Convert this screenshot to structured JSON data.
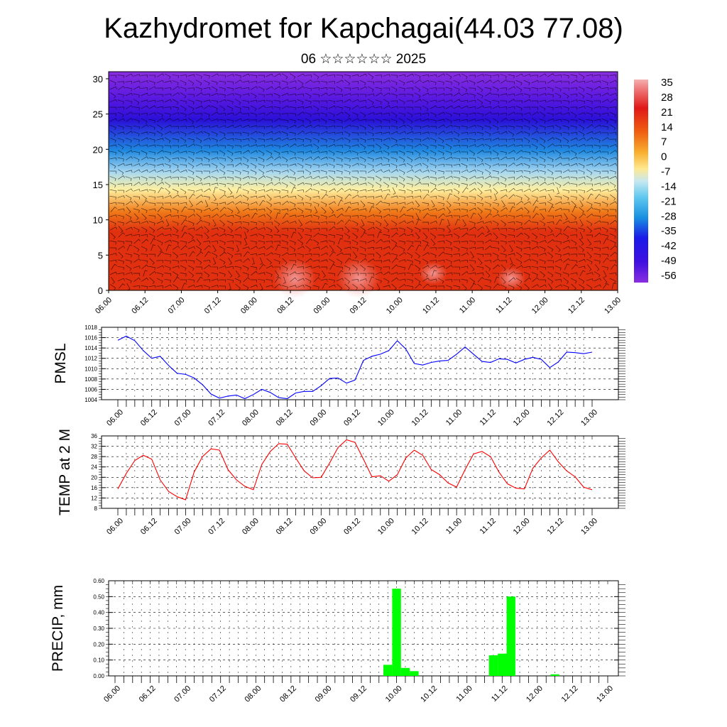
{
  "header": {
    "title": "Kazhydromet for Kapchagai(44.03 77.08)",
    "subtitle": "06 ☆☆☆☆☆☆ 2025"
  },
  "chart_data": [
    {
      "type": "heatmap",
      "title": "",
      "ylabel": "",
      "x_tick_labels": [
        "06.00",
        "06.12",
        "07.00",
        "07.12",
        "08.00",
        "08.12",
        "09.00",
        "09.12",
        "10.00",
        "10.12",
        "11.00",
        "11.12",
        "12.00",
        "12.12",
        "13.00"
      ],
      "y_ticks": [
        0,
        5,
        10,
        15,
        20,
        25,
        30
      ],
      "ylim": [
        0,
        31
      ],
      "colorbar_labels": [
        35,
        28,
        21,
        14,
        7,
        0,
        -7,
        -14,
        -21,
        -28,
        -35,
        -42,
        -49,
        -56
      ],
      "overlay": "wind barbs",
      "colors": {
        "hot": "#e03010",
        "warm": "#f07a18",
        "neutral": "#fff0a0",
        "cold": "#1e88e0",
        "deep": "#2a10d8",
        "top": "#8a2ee0"
      }
    },
    {
      "type": "line",
      "ylabel": "PMSL",
      "color": "#0000ff",
      "ylim": [
        1004,
        1018
      ],
      "y_ticks": [
        1004,
        1006,
        1008,
        1010,
        1012,
        1014,
        1016,
        1018
      ],
      "x_tick_labels": [
        "06.00",
        "06.12",
        "07.00",
        "07.12",
        "08.00",
        "08.12",
        "09.00",
        "09.12",
        "10.00",
        "10.12",
        "11.00",
        "11.12",
        "12.00",
        "12.12",
        "13.00"
      ],
      "values": [
        1015.5,
        1016.3,
        1015.4,
        1013.5,
        1012.0,
        1012.4,
        1010.6,
        1009.1,
        1008.9,
        1008.2,
        1006.9,
        1005.1,
        1004.3,
        1004.7,
        1004.9,
        1004.2,
        1005.0,
        1006.0,
        1005.4,
        1004.4,
        1004.2,
        1005.3,
        1005.6,
        1005.6,
        1006.7,
        1008.1,
        1008.2,
        1007.2,
        1007.8,
        1011.6,
        1012.4,
        1012.8,
        1013.5,
        1015.4,
        1013.8,
        1011.0,
        1010.7,
        1011.2,
        1011.5,
        1011.6,
        1012.8,
        1014.2,
        1012.8,
        1011.4,
        1011.2,
        1011.9,
        1011.8,
        1011.1,
        1011.8,
        1012.2,
        1011.8,
        1010.2,
        1011.3,
        1013.2,
        1013.1,
        1012.9,
        1013.2
      ],
      "x_start_hour": 0,
      "x_step_hours": 3
    },
    {
      "type": "line",
      "ylabel": "TEMP at 2 M",
      "color": "#ff0000",
      "ylim": [
        8,
        36
      ],
      "y_ticks": [
        8,
        12,
        16,
        20,
        24,
        28,
        32,
        36
      ],
      "x_tick_labels": [
        "06.00",
        "06.12",
        "07.00",
        "07.12",
        "08.00",
        "08.12",
        "09.00",
        "09.12",
        "10.00",
        "10.12",
        "11.00",
        "11.12",
        "12.00",
        "12.12",
        "13.00"
      ],
      "values": [
        15.5,
        21.5,
        26.5,
        28.5,
        27.0,
        19.0,
        14.5,
        12.5,
        11.3,
        22.0,
        28.0,
        31.0,
        30.5,
        23.0,
        19.0,
        16.5,
        15.2,
        25.0,
        30.0,
        33.0,
        32.8,
        27.5,
        22.5,
        19.8,
        20.0,
        25.5,
        31.5,
        34.5,
        33.5,
        27.0,
        20.2,
        20.6,
        18.5,
        21.0,
        27.5,
        30.5,
        28.5,
        23.0,
        21.0,
        17.8,
        16.2,
        23.0,
        29.0,
        30.0,
        28.0,
        22.0,
        17.5,
        15.8,
        15.5,
        23.5,
        27.5,
        30.5,
        26.0,
        22.5,
        20.2,
        16.2,
        15.2
      ],
      "x_start_hour": 0,
      "x_step_hours": 3
    },
    {
      "type": "bar",
      "ylabel": "PRECIP, mm",
      "color": "#00ff00",
      "ylim": [
        0,
        0.6
      ],
      "y_tick_labels": [
        "0.00",
        "0.10",
        "0.20",
        "0.30",
        "0.40",
        "0.50",
        "0.60"
      ],
      "x_tick_labels": [
        "06.00",
        "06.12",
        "07.00",
        "07.12",
        "08.00",
        "08.12",
        "09.00",
        "09.12",
        "10.00",
        "10.12",
        "11.00",
        "11.12",
        "12.00",
        "12.12",
        "13.00"
      ],
      "bars": [
        {
          "hour": 93,
          "value": 0.07
        },
        {
          "hour": 96,
          "value": 0.55
        },
        {
          "hour": 99,
          "value": 0.05
        },
        {
          "hour": 102,
          "value": 0.03
        },
        {
          "hour": 129,
          "value": 0.13
        },
        {
          "hour": 132,
          "value": 0.14
        },
        {
          "hour": 135,
          "value": 0.5
        },
        {
          "hour": 150,
          "value": 0.01
        }
      ]
    }
  ]
}
